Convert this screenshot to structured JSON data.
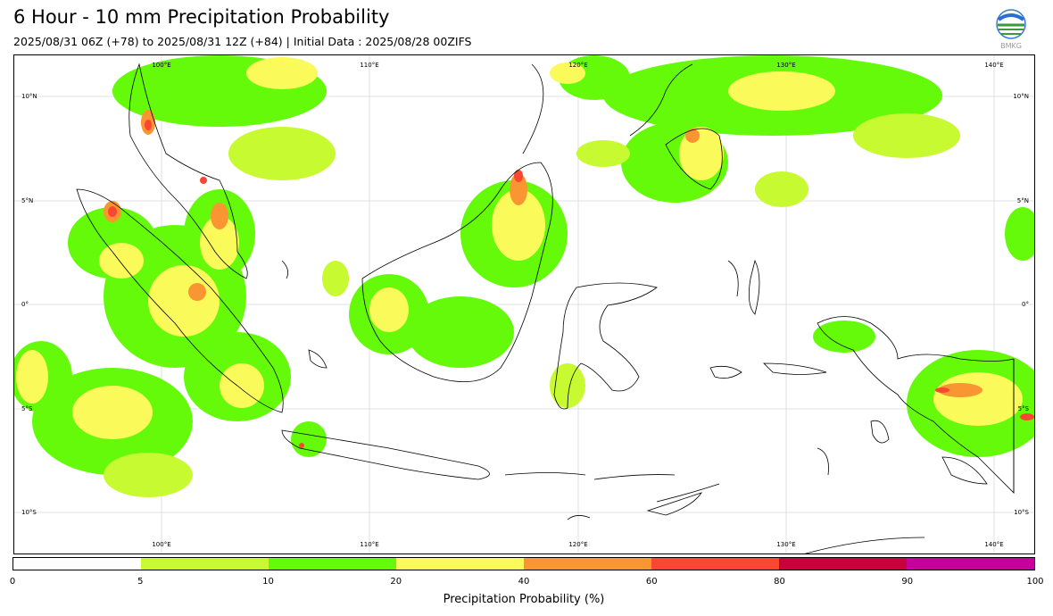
{
  "header": {
    "title": "6 Hour - 10 mm Precipitation Probability",
    "subtitle": "2025/08/31 06Z (+78) to 2025/08/31 12Z (+84) | Initial Data : 2025/08/28 00ZIFS"
  },
  "logo": {
    "icon": "bmkg-logo",
    "text": "BMKG"
  },
  "map": {
    "region": "Indonesia",
    "lon_labels": [
      "100°E",
      "110°E",
      "120°E",
      "130°E",
      "140°E"
    ],
    "lat_labels": [
      "10°N",
      "5°N",
      "0°",
      "5°S",
      "10°S"
    ],
    "grid": true
  },
  "colorbar": {
    "label": "Precipitation Probability (%)",
    "ticks": [
      "0",
      "5",
      "10",
      "20",
      "40",
      "60",
      "80",
      "90",
      "100"
    ],
    "colors": [
      "#ffffff",
      "#c8fa32",
      "#64fa0a",
      "#fafa5a",
      "#fa9632",
      "#fa4632",
      "#c8003c",
      "#c8009b"
    ]
  }
}
